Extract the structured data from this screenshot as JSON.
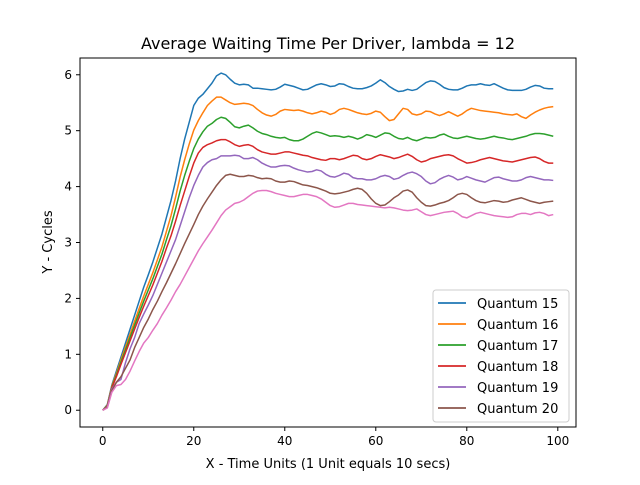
{
  "chart_data": {
    "type": "line",
    "title": "Average Waiting Time Per Driver, lambda = 12",
    "xlabel": "X - Time Units (1 Unit equals 10 secs)",
    "ylabel": "Y - Cycles",
    "xlim": [
      -5,
      104
    ],
    "ylim": [
      -0.3,
      6.3
    ],
    "xticks": [
      0,
      20,
      40,
      60,
      80,
      100
    ],
    "yticks": [
      0,
      1,
      2,
      3,
      4,
      5,
      6
    ],
    "grid": false,
    "legend_position": "lower-right",
    "x": [
      0,
      1,
      2,
      3,
      4,
      5,
      6,
      7,
      8,
      9,
      10,
      11,
      12,
      13,
      14,
      15,
      16,
      17,
      18,
      19,
      20,
      21,
      22,
      23,
      24,
      25,
      26,
      27,
      28,
      29,
      30,
      31,
      32,
      33,
      34,
      35,
      36,
      37,
      38,
      39,
      40,
      41,
      42,
      43,
      44,
      45,
      46,
      47,
      48,
      49,
      50,
      51,
      52,
      53,
      54,
      55,
      56,
      57,
      58,
      59,
      60,
      61,
      62,
      63,
      64,
      65,
      66,
      67,
      68,
      69,
      70,
      71,
      72,
      73,
      74,
      75,
      76,
      77,
      78,
      79,
      80,
      81,
      82,
      83,
      84,
      85,
      86,
      87,
      88,
      89,
      90,
      91,
      92,
      93,
      94,
      95,
      96,
      97,
      98,
      99
    ],
    "series": [
      {
        "name": "Quantum 15",
        "color": "#1f77b4",
        "values": [
          0,
          0.1,
          0.45,
          0.7,
          0.95,
          1.2,
          1.45,
          1.7,
          1.95,
          2.2,
          2.42,
          2.65,
          2.9,
          3.15,
          3.45,
          3.75,
          4.1,
          4.5,
          4.85,
          5.15,
          5.45,
          5.58,
          5.65,
          5.75,
          5.85,
          5.98,
          6.03,
          6.0,
          5.92,
          5.85,
          5.82,
          5.83,
          5.82,
          5.76,
          5.76,
          5.75,
          5.74,
          5.73,
          5.74,
          5.78,
          5.83,
          5.81,
          5.79,
          5.76,
          5.73,
          5.74,
          5.78,
          5.82,
          5.84,
          5.82,
          5.79,
          5.8,
          5.84,
          5.83,
          5.79,
          5.76,
          5.75,
          5.75,
          5.77,
          5.8,
          5.85,
          5.91,
          5.86,
          5.79,
          5.74,
          5.7,
          5.71,
          5.74,
          5.72,
          5.74,
          5.8,
          5.86,
          5.89,
          5.88,
          5.83,
          5.77,
          5.74,
          5.73,
          5.73,
          5.76,
          5.8,
          5.82,
          5.82,
          5.84,
          5.82,
          5.81,
          5.84,
          5.8,
          5.76,
          5.73,
          5.72,
          5.72,
          5.72,
          5.74,
          5.78,
          5.81,
          5.8,
          5.76,
          5.75,
          5.75
        ]
      },
      {
        "name": "Quantum 16",
        "color": "#ff7f0e",
        "values": [
          0,
          0.09,
          0.43,
          0.66,
          0.9,
          1.13,
          1.36,
          1.59,
          1.82,
          2.04,
          2.25,
          2.46,
          2.69,
          2.92,
          3.2,
          3.48,
          3.81,
          4.17,
          4.48,
          4.76,
          5.01,
          5.18,
          5.32,
          5.45,
          5.53,
          5.6,
          5.6,
          5.55,
          5.5,
          5.47,
          5.48,
          5.49,
          5.48,
          5.45,
          5.38,
          5.32,
          5.28,
          5.26,
          5.29,
          5.35,
          5.38,
          5.37,
          5.36,
          5.37,
          5.35,
          5.32,
          5.3,
          5.32,
          5.35,
          5.33,
          5.29,
          5.32,
          5.38,
          5.4,
          5.38,
          5.35,
          5.32,
          5.3,
          5.29,
          5.31,
          5.35,
          5.33,
          5.25,
          5.18,
          5.2,
          5.3,
          5.4,
          5.38,
          5.3,
          5.28,
          5.3,
          5.35,
          5.34,
          5.3,
          5.27,
          5.3,
          5.34,
          5.3,
          5.26,
          5.3,
          5.36,
          5.4,
          5.38,
          5.36,
          5.35,
          5.34,
          5.33,
          5.32,
          5.3,
          5.29,
          5.28,
          5.3,
          5.25,
          5.22,
          5.28,
          5.33,
          5.37,
          5.4,
          5.42,
          5.43
        ]
      },
      {
        "name": "Quantum 17",
        "color": "#2ca02c",
        "values": [
          0,
          0.08,
          0.41,
          0.63,
          0.86,
          1.08,
          1.3,
          1.52,
          1.74,
          1.95,
          2.15,
          2.35,
          2.57,
          2.79,
          3.05,
          3.3,
          3.6,
          3.92,
          4.2,
          4.45,
          4.68,
          4.85,
          4.98,
          5.08,
          5.13,
          5.2,
          5.24,
          5.22,
          5.15,
          5.07,
          5.05,
          5.08,
          5.1,
          5.05,
          4.99,
          4.95,
          4.93,
          4.9,
          4.88,
          4.87,
          4.88,
          4.84,
          4.82,
          4.82,
          4.85,
          4.9,
          4.95,
          4.98,
          4.96,
          4.93,
          4.9,
          4.91,
          4.9,
          4.88,
          4.9,
          4.88,
          4.85,
          4.88,
          4.93,
          4.91,
          4.88,
          4.92,
          4.96,
          4.95,
          4.9,
          4.86,
          4.85,
          4.88,
          4.84,
          4.82,
          4.85,
          4.88,
          4.87,
          4.88,
          4.92,
          4.94,
          4.9,
          4.87,
          4.86,
          4.88,
          4.9,
          4.88,
          4.86,
          4.85,
          4.86,
          4.88,
          4.9,
          4.88,
          4.87,
          4.85,
          4.84,
          4.86,
          4.88,
          4.9,
          4.93,
          4.95,
          4.95,
          4.94,
          4.92,
          4.9
        ]
      },
      {
        "name": "Quantum 18",
        "color": "#d62728",
        "values": [
          0,
          0.07,
          0.4,
          0.6,
          0.82,
          1.03,
          1.24,
          1.45,
          1.66,
          1.86,
          2.05,
          2.24,
          2.45,
          2.66,
          2.9,
          3.12,
          3.38,
          3.66,
          3.92,
          4.18,
          4.42,
          4.6,
          4.7,
          4.75,
          4.78,
          4.82,
          4.84,
          4.84,
          4.8,
          4.75,
          4.72,
          4.74,
          4.75,
          4.72,
          4.66,
          4.62,
          4.6,
          4.58,
          4.58,
          4.6,
          4.62,
          4.62,
          4.6,
          4.58,
          4.56,
          4.55,
          4.52,
          4.5,
          4.48,
          4.47,
          4.5,
          4.5,
          4.48,
          4.5,
          4.53,
          4.56,
          4.55,
          4.5,
          4.48,
          4.5,
          4.54,
          4.57,
          4.55,
          4.53,
          4.5,
          4.52,
          4.55,
          4.58,
          4.54,
          4.48,
          4.44,
          4.46,
          4.5,
          4.52,
          4.54,
          4.56,
          4.57,
          4.55,
          4.5,
          4.46,
          4.42,
          4.43,
          4.45,
          4.48,
          4.5,
          4.52,
          4.5,
          4.48,
          4.46,
          4.45,
          4.44,
          4.46,
          4.48,
          4.5,
          4.52,
          4.53,
          4.5,
          4.45,
          4.42,
          4.42
        ]
      },
      {
        "name": "Quantum 19",
        "color": "#9467bd",
        "values": [
          0,
          0.06,
          0.38,
          0.5,
          0.55,
          0.85,
          1.1,
          1.3,
          1.55,
          1.72,
          1.88,
          2.05,
          2.25,
          2.45,
          2.65,
          2.85,
          3.05,
          3.3,
          3.55,
          3.8,
          4.02,
          4.2,
          4.35,
          4.43,
          4.48,
          4.5,
          4.55,
          4.55,
          4.55,
          4.56,
          4.55,
          4.5,
          4.5,
          4.52,
          4.48,
          4.42,
          4.38,
          4.35,
          4.35,
          4.37,
          4.38,
          4.37,
          4.33,
          4.3,
          4.28,
          4.26,
          4.27,
          4.3,
          4.28,
          4.22,
          4.18,
          4.17,
          4.2,
          4.24,
          4.22,
          4.16,
          4.14,
          4.14,
          4.12,
          4.12,
          4.14,
          4.18,
          4.2,
          4.18,
          4.13,
          4.15,
          4.2,
          4.24,
          4.26,
          4.23,
          4.18,
          4.1,
          4.05,
          4.07,
          4.13,
          4.17,
          4.2,
          4.17,
          4.12,
          4.14,
          4.18,
          4.15,
          4.12,
          4.1,
          4.08,
          4.12,
          4.16,
          4.17,
          4.14,
          4.12,
          4.1,
          4.1,
          4.12,
          4.16,
          4.18,
          4.16,
          4.14,
          4.12,
          4.12,
          4.11
        ]
      },
      {
        "name": "Quantum 20",
        "color": "#8c564b",
        "values": [
          0,
          0.05,
          0.35,
          0.5,
          0.6,
          0.75,
          0.9,
          1.12,
          1.3,
          1.48,
          1.63,
          1.8,
          1.95,
          2.12,
          2.28,
          2.45,
          2.62,
          2.8,
          2.98,
          3.15,
          3.32,
          3.5,
          3.65,
          3.78,
          3.9,
          4.02,
          4.12,
          4.2,
          4.22,
          4.2,
          4.18,
          4.18,
          4.2,
          4.19,
          4.16,
          4.14,
          4.15,
          4.14,
          4.1,
          4.08,
          4.08,
          4.1,
          4.09,
          4.06,
          4.03,
          4.02,
          4.0,
          3.98,
          3.95,
          3.92,
          3.88,
          3.87,
          3.88,
          3.9,
          3.92,
          3.95,
          3.97,
          3.95,
          3.88,
          3.78,
          3.7,
          3.66,
          3.67,
          3.73,
          3.8,
          3.85,
          3.92,
          3.94,
          3.9,
          3.8,
          3.72,
          3.66,
          3.65,
          3.67,
          3.7,
          3.72,
          3.75,
          3.8,
          3.86,
          3.88,
          3.86,
          3.8,
          3.75,
          3.72,
          3.71,
          3.73,
          3.75,
          3.74,
          3.72,
          3.73,
          3.76,
          3.78,
          3.8,
          3.77,
          3.74,
          3.72,
          3.7,
          3.72,
          3.73,
          3.74
        ]
      },
      {
        "name": "",
        "color": "#e377c2",
        "values": [
          0,
          0.04,
          0.32,
          0.44,
          0.46,
          0.55,
          0.7,
          0.88,
          1.05,
          1.2,
          1.3,
          1.43,
          1.55,
          1.7,
          1.83,
          1.97,
          2.12,
          2.25,
          2.4,
          2.55,
          2.7,
          2.85,
          2.98,
          3.1,
          3.22,
          3.35,
          3.48,
          3.58,
          3.64,
          3.7,
          3.72,
          3.76,
          3.82,
          3.88,
          3.92,
          3.93,
          3.93,
          3.91,
          3.88,
          3.86,
          3.84,
          3.82,
          3.82,
          3.84,
          3.86,
          3.86,
          3.84,
          3.82,
          3.78,
          3.72,
          3.66,
          3.63,
          3.64,
          3.67,
          3.7,
          3.7,
          3.68,
          3.67,
          3.66,
          3.65,
          3.64,
          3.63,
          3.62,
          3.63,
          3.62,
          3.6,
          3.58,
          3.57,
          3.58,
          3.6,
          3.55,
          3.5,
          3.48,
          3.5,
          3.52,
          3.54,
          3.55,
          3.56,
          3.52,
          3.46,
          3.44,
          3.48,
          3.52,
          3.54,
          3.52,
          3.5,
          3.48,
          3.47,
          3.46,
          3.45,
          3.46,
          3.5,
          3.52,
          3.52,
          3.5,
          3.53,
          3.54,
          3.52,
          3.48,
          3.5
        ]
      }
    ]
  }
}
